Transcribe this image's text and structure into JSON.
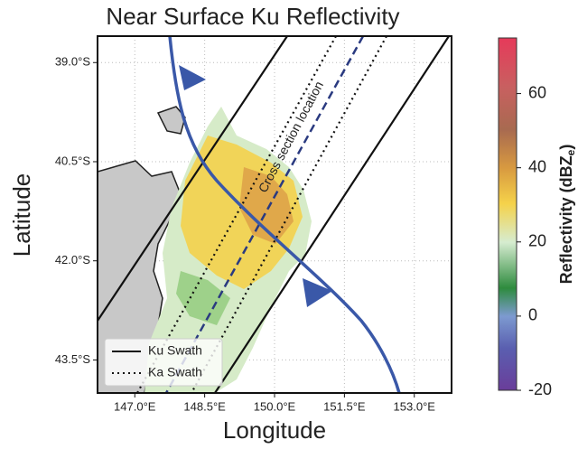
{
  "chart_data": {
    "type": "map",
    "title": "Near Surface Ku Reflectivity",
    "x_label": "Longitude",
    "y_label": "Latitude",
    "xlim": [
      146.2,
      153.8
    ],
    "ylim": [
      -44.0,
      -38.6
    ],
    "xticks": [
      {
        "value": 147.0,
        "label": "147.0°E"
      },
      {
        "value": 148.5,
        "label": "148.5°E"
      },
      {
        "value": 150.0,
        "label": "150.0°E"
      },
      {
        "value": 151.5,
        "label": "151.5°E"
      },
      {
        "value": 153.0,
        "label": "153.0°E"
      }
    ],
    "yticks": [
      {
        "value": -39.0,
        "label": "39.0°S"
      },
      {
        "value": -40.5,
        "label": "40.5°S"
      },
      {
        "value": -42.0,
        "label": "42.0°S"
      },
      {
        "value": -43.5,
        "label": "43.5°S"
      }
    ],
    "grid": true,
    "annotation": "Cross section location",
    "legend": {
      "position": "lower left",
      "entries": [
        {
          "name": "Ku Swath",
          "style": "solid"
        },
        {
          "name": "Ka Swath",
          "style": "dotted"
        }
      ]
    },
    "colorbar": {
      "label": "Reflectivity (dBZ",
      "label_subscript": "e",
      "label_end": ")",
      "lim": [
        -20,
        75
      ],
      "ticks": [
        -20,
        0,
        20,
        40,
        60
      ]
    }
  }
}
